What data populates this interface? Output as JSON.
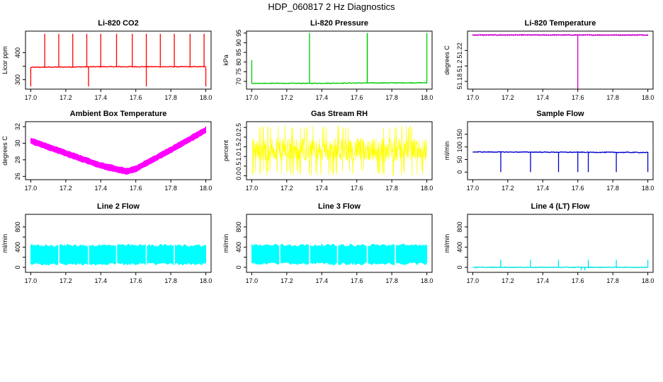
{
  "page_title": "HDP_060817  2 Hz Diagnostics",
  "chart_data": [
    {
      "type": "line",
      "title": "Li-820 CO2",
      "ylabel": "Licor ppm",
      "color": "#ff0000",
      "xlim": [
        16.97,
        18.03
      ],
      "ylim": [
        265,
        480
      ],
      "xticks": [
        17.0,
        17.2,
        17.4,
        17.6,
        17.8,
        18.0
      ],
      "yticks": [
        300,
        350,
        400
      ],
      "yticklabels": [
        "300",
        "",
        "400"
      ],
      "baseline": {
        "x": [
          17.0,
          17.2,
          17.4,
          17.6,
          18.0
        ],
        "y": [
          346,
          347,
          348,
          348,
          348
        ]
      },
      "spikes_up": {
        "x": [
          17.08,
          17.16,
          17.24,
          17.32,
          17.4,
          17.49,
          17.58,
          17.66,
          17.74,
          17.82,
          17.91,
          17.99
        ],
        "y": 470
      },
      "spikes_down": {
        "x": [
          17.0,
          17.33,
          17.66,
          18.0
        ],
        "y": 275
      }
    },
    {
      "type": "line",
      "title": "Li-820 Pressure",
      "ylabel": "kPa",
      "color": "#00cc00",
      "xlim": [
        16.97,
        18.03
      ],
      "ylim": [
        66,
        96
      ],
      "xticks": [
        17.0,
        17.2,
        17.4,
        17.6,
        17.8,
        18.0
      ],
      "yticks": [
        70,
        75,
        80,
        85,
        90,
        95
      ],
      "baseline": {
        "x": [
          17.0,
          17.33,
          17.66,
          18.0
        ],
        "y": [
          69,
          69,
          69.2,
          69.3
        ]
      },
      "spikes_up": {
        "x": [
          17.0,
          17.33,
          17.66,
          17.66,
          18.0
        ],
        "y": [
          81,
          95,
          95,
          95,
          95
        ]
      }
    },
    {
      "type": "line",
      "title": "Li-820 Temperature",
      "ylabel": "degrees C",
      "color": "#cc00cc",
      "xlim": [
        16.97,
        18.03
      ],
      "ylim": [
        51.17,
        51.245
      ],
      "xticks": [
        17.0,
        17.2,
        17.4,
        17.6,
        17.8,
        18.0
      ],
      "yticks": [
        51.18,
        51.2,
        51.22
      ],
      "baseline": {
        "x": [
          17.0,
          18.0
        ],
        "y": [
          51.24,
          51.24
        ]
      },
      "spikes_down": {
        "x": [
          17.6
        ],
        "y": 51.17
      }
    },
    {
      "type": "line",
      "title": "Ambient Box Temperature",
      "ylabel": "degrees C",
      "color": "#ff00ff",
      "xlim": [
        16.97,
        18.03
      ],
      "ylim": [
        25.6,
        32.6
      ],
      "xticks": [
        17.0,
        17.2,
        17.4,
        17.6,
        17.8,
        18.0
      ],
      "yticks": [
        26,
        28,
        30,
        32
      ],
      "band": {
        "x": [
          17.0,
          17.2,
          17.4,
          17.55,
          17.6,
          17.8,
          18.0
        ],
        "y": [
          30.3,
          28.8,
          27.3,
          26.6,
          26.9,
          29.2,
          31.6
        ],
        "halfwidth": 0.35
      }
    },
    {
      "type": "line",
      "title": "Gas Stream RH",
      "ylabel": "percent",
      "color": "#ffff00",
      "xlim": [
        16.97,
        18.03
      ],
      "ylim": [
        -0.2,
        2.8
      ],
      "xticks": [
        17.0,
        17.2,
        17.4,
        17.6,
        17.8,
        18.0
      ],
      "yticks": [
        0.0,
        0.5,
        1.0,
        1.5,
        2.0,
        2.5
      ],
      "yticklabels": [
        "0.0",
        "0.5",
        "1.0",
        "1.5",
        "2.0",
        "2.5"
      ],
      "noise": {
        "center": 1.35,
        "amplitude": 0.6,
        "min": 0.0,
        "max": 2.6
      }
    },
    {
      "type": "line",
      "title": "Sample Flow",
      "ylabel": "ml/min",
      "color": "#0000cc",
      "xlim": [
        16.97,
        18.03
      ],
      "ylim": [
        -30,
        200
      ],
      "xticks": [
        17.0,
        17.2,
        17.4,
        17.6,
        17.8,
        18.0
      ],
      "yticks": [
        0,
        50,
        100,
        150
      ],
      "yticklabels": [
        "0",
        "50",
        "100",
        "150"
      ],
      "baseline": {
        "x": [
          17.0,
          18.0
        ],
        "y": [
          80,
          78
        ]
      },
      "spikes_down": {
        "x": [
          17.16,
          17.33,
          17.49,
          17.6,
          17.66,
          17.82,
          18.0
        ],
        "y": 0
      }
    },
    {
      "type": "line",
      "title": "Line 2 Flow",
      "ylabel": "ml/min",
      "color": "#00ffff",
      "xlim": [
        16.97,
        18.03
      ],
      "ylim": [
        -100,
        1050
      ],
      "xticks": [
        17.0,
        17.2,
        17.4,
        17.6,
        17.8,
        18.0
      ],
      "yticks": [
        0,
        200,
        400,
        600,
        800
      ],
      "yticklabels": [
        "0",
        "",
        "400",
        "",
        "800"
      ],
      "band": {
        "x": [
          17.0,
          18.0
        ],
        "y": [
          250,
          250
        ],
        "halfwidth": 180
      },
      "gaps": [
        17.16,
        17.33,
        17.49,
        17.66,
        17.82
      ]
    },
    {
      "type": "line",
      "title": "Line 3 Flow",
      "ylabel": "ml/min",
      "color": "#00ffff",
      "xlim": [
        16.97,
        18.03
      ],
      "ylim": [
        -100,
        1050
      ],
      "xticks": [
        17.0,
        17.2,
        17.4,
        17.6,
        17.8,
        18.0
      ],
      "yticks": [
        0,
        200,
        400,
        600,
        800
      ],
      "yticklabels": [
        "0",
        "",
        "400",
        "",
        "800"
      ],
      "band": {
        "x": [
          17.0,
          18.0
        ],
        "y": [
          255,
          255
        ],
        "halfwidth": 180
      },
      "gaps": [
        17.16,
        17.33,
        17.49,
        17.66,
        17.82
      ]
    },
    {
      "type": "line",
      "title": "Line 4 (LT) Flow",
      "ylabel": "ml/min",
      "color": "#00e5e5",
      "xlim": [
        16.97,
        18.03
      ],
      "ylim": [
        -100,
        1050
      ],
      "xticks": [
        17.0,
        17.2,
        17.4,
        17.6,
        17.8,
        18.0
      ],
      "yticks": [
        0,
        200,
        400,
        600,
        800
      ],
      "yticklabels": [
        "0",
        "",
        "400",
        "",
        "800"
      ],
      "baseline": {
        "x": [
          17.0,
          18.0
        ],
        "y": [
          0,
          0
        ]
      },
      "spikes_up": {
        "x": [
          17.16,
          17.33,
          17.49,
          17.66,
          17.82,
          18.0
        ],
        "y": 150
      },
      "spikes_down": {
        "x": [
          17.62,
          17.64
        ],
        "y": -60
      }
    }
  ]
}
